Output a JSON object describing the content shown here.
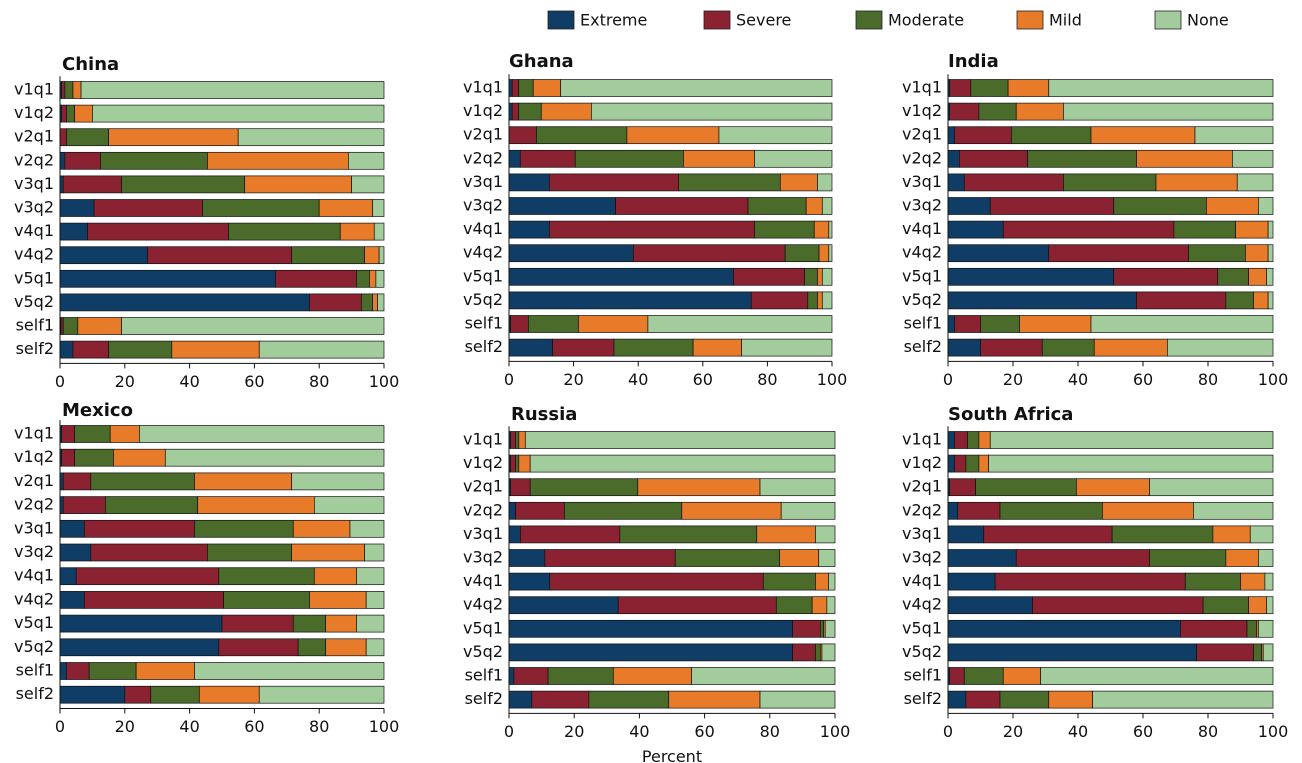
{
  "chart_data": [
    {
      "type": "bar",
      "orientation": "horizontal",
      "stacked": true,
      "title": "China",
      "categories": [
        "v1q1",
        "v1q2",
        "v2q1",
        "v2q2",
        "v3q1",
        "v3q2",
        "v4q1",
        "v4q2",
        "v5q1",
        "v5q2",
        "self1",
        "self2"
      ],
      "series": [
        {
          "name": "Extreme",
          "color": "#0f3d66",
          "values": [
            0.5,
            0.5,
            0,
            1.5,
            1,
            10.5,
            8.5,
            27,
            66.5,
            77,
            0.3,
            4
          ]
        },
        {
          "name": "Severe",
          "color": "#8b2232",
          "values": [
            1,
            1.5,
            2,
            11,
            18,
            33.5,
            43.5,
            44.5,
            25,
            16,
            0.7,
            11
          ]
        },
        {
          "name": "Moderate",
          "color": "#4a6b2a",
          "values": [
            2.5,
            2.5,
            13,
            33,
            38,
            36,
            34.5,
            22.5,
            4,
            3.5,
            4.5,
            19.5
          ]
        },
        {
          "name": "Mild",
          "color": "#e87b2a",
          "values": [
            2.5,
            5.5,
            40,
            43.5,
            33,
            16.5,
            10.5,
            4.5,
            2,
            1.5,
            13.5,
            27
          ]
        },
        {
          "name": "None",
          "color": "#a3cc9d",
          "values": [
            93.5,
            90,
            45,
            11,
            10,
            3.5,
            3,
            1.5,
            2.5,
            2,
            81,
            38.5
          ]
        }
      ],
      "xlim": [
        0,
        100
      ],
      "xticks": [
        0,
        20,
        40,
        60,
        80,
        100
      ]
    },
    {
      "type": "bar",
      "orientation": "horizontal",
      "stacked": true,
      "title": "Ghana",
      "categories": [
        "v1q1",
        "v1q2",
        "v2q1",
        "v2q2",
        "v3q1",
        "v3q2",
        "v4q1",
        "v4q2",
        "v5q1",
        "v5q2",
        "self1",
        "self2"
      ],
      "series": [
        {
          "name": "Extreme",
          "color": "#0f3d66",
          "values": [
            1,
            1,
            0,
            3.5,
            12.5,
            33,
            12.5,
            38.5,
            69.5,
            75,
            0.5,
            13.5
          ]
        },
        {
          "name": "Severe",
          "color": "#8b2232",
          "values": [
            2,
            2,
            8.5,
            17,
            40,
            41,
            63.5,
            47,
            22,
            17.5,
            5.5,
            19
          ]
        },
        {
          "name": "Moderate",
          "color": "#4a6b2a",
          "values": [
            4.5,
            7,
            28,
            33.5,
            31.5,
            18,
            18.5,
            10.5,
            4,
            3,
            15.5,
            24.5
          ]
        },
        {
          "name": "Mild",
          "color": "#e87b2a",
          "values": [
            8.5,
            15.5,
            28.5,
            22,
            11.5,
            5,
            4.5,
            3,
            1.5,
            1.5,
            21.5,
            15
          ]
        },
        {
          "name": "None",
          "color": "#a3cc9d",
          "values": [
            84,
            74.5,
            35,
            24,
            4.5,
            3,
            1,
            1,
            3,
            3,
            57,
            28
          ]
        }
      ],
      "xlim": [
        0,
        100
      ],
      "xticks": [
        0,
        20,
        40,
        60,
        80,
        100
      ]
    },
    {
      "type": "bar",
      "orientation": "horizontal",
      "stacked": true,
      "title": "India",
      "categories": [
        "v1q1",
        "v1q2",
        "v2q1",
        "v2q2",
        "v3q1",
        "v3q2",
        "v4q1",
        "v4q2",
        "v5q1",
        "v5q2",
        "self1",
        "self2"
      ],
      "series": [
        {
          "name": "Extreme",
          "color": "#0f3d66",
          "values": [
            0.5,
            0.5,
            2,
            3.5,
            5,
            13,
            17,
            31,
            51,
            58,
            2,
            10
          ]
        },
        {
          "name": "Severe",
          "color": "#8b2232",
          "values": [
            6.5,
            9,
            17.5,
            21,
            30.5,
            38,
            52.5,
            43,
            32,
            27.5,
            8,
            19
          ]
        },
        {
          "name": "Moderate",
          "color": "#4a6b2a",
          "values": [
            11.5,
            11.5,
            24.5,
            33.5,
            28.5,
            28.5,
            19,
            17.5,
            9.5,
            8.5,
            12,
            16
          ]
        },
        {
          "name": "Mild",
          "color": "#e87b2a",
          "values": [
            12.5,
            14.5,
            32,
            29.5,
            25,
            16,
            10,
            7,
            5.5,
            4.5,
            22,
            22.5
          ]
        },
        {
          "name": "None",
          "color": "#a3cc9d",
          "values": [
            69,
            64.5,
            24,
            12.5,
            11,
            4.5,
            1.5,
            1.5,
            2,
            1.5,
            56,
            32.5
          ]
        }
      ],
      "xlim": [
        0,
        100
      ],
      "xticks": [
        0,
        20,
        40,
        60,
        80,
        100
      ]
    },
    {
      "type": "bar",
      "orientation": "horizontal",
      "stacked": true,
      "title": "Mexico",
      "categories": [
        "v1q1",
        "v1q2",
        "v2q1",
        "v2q2",
        "v3q1",
        "v3q2",
        "v4q1",
        "v4q2",
        "v5q1",
        "v5q2",
        "self1",
        "self2"
      ],
      "series": [
        {
          "name": "Extreme",
          "color": "#0f3d66",
          "values": [
            0.5,
            0.5,
            1,
            1,
            7.5,
            9.5,
            5,
            7.5,
            50,
            49,
            2,
            20
          ]
        },
        {
          "name": "Severe",
          "color": "#8b2232",
          "values": [
            4,
            4,
            8.5,
            13,
            34,
            36,
            44,
            43,
            22,
            24.5,
            7,
            8
          ]
        },
        {
          "name": "Moderate",
          "color": "#4a6b2a",
          "values": [
            11,
            12,
            32,
            28.5,
            30.5,
            26,
            29.5,
            26.5,
            10,
            8.5,
            14.5,
            15
          ]
        },
        {
          "name": "Mild",
          "color": "#e87b2a",
          "values": [
            9,
            16,
            30,
            36,
            17.5,
            22.5,
            13,
            17.5,
            9.5,
            12.5,
            18,
            18.5
          ]
        },
        {
          "name": "None",
          "color": "#a3cc9d",
          "values": [
            75.5,
            67.5,
            28.5,
            21.5,
            10.5,
            6,
            8.5,
            5.5,
            8.5,
            5.5,
            58.5,
            38.5
          ]
        }
      ],
      "xlim": [
        0,
        100
      ],
      "xticks": [
        0,
        20,
        40,
        60,
        80,
        100
      ]
    },
    {
      "type": "bar",
      "orientation": "horizontal",
      "stacked": true,
      "title": "Russia",
      "xlabel": "Percent",
      "categories": [
        "v1q1",
        "v1q2",
        "v2q1",
        "v2q2",
        "v3q1",
        "v3q2",
        "v4q1",
        "v4q2",
        "v5q1",
        "v5q2",
        "self1",
        "self2"
      ],
      "series": [
        {
          "name": "Extreme",
          "color": "#0f3d66",
          "values": [
            0.5,
            0.5,
            0.5,
            2,
            3.5,
            11,
            12.5,
            33.5,
            87,
            87,
            1.5,
            7
          ]
        },
        {
          "name": "Severe",
          "color": "#8b2232",
          "values": [
            1.5,
            1.5,
            6,
            15,
            30.5,
            40,
            65.5,
            48.5,
            8.5,
            7,
            10.5,
            17.5
          ]
        },
        {
          "name": "Moderate",
          "color": "#4a6b2a",
          "values": [
            1,
            1,
            33,
            36,
            42,
            32,
            16,
            11,
            1,
            1.5,
            20,
            24.5
          ]
        },
        {
          "name": "Mild",
          "color": "#e87b2a",
          "values": [
            2,
            3.5,
            37.5,
            30.5,
            18,
            12,
            4,
            4.5,
            0.5,
            0.5,
            24,
            28
          ]
        },
        {
          "name": "None",
          "color": "#a3cc9d",
          "values": [
            95,
            93.5,
            23,
            16.5,
            6,
            5,
            2,
            2.5,
            3,
            4,
            44,
            23
          ]
        }
      ],
      "xlim": [
        0,
        100
      ],
      "xticks": [
        0,
        20,
        40,
        60,
        80,
        100
      ]
    },
    {
      "type": "bar",
      "orientation": "horizontal",
      "stacked": true,
      "title": "South Africa",
      "categories": [
        "v1q1",
        "v1q2",
        "v2q1",
        "v2q2",
        "v3q1",
        "v3q2",
        "v4q1",
        "v4q2",
        "v5q1",
        "v5q2",
        "self1",
        "self2"
      ],
      "series": [
        {
          "name": "Extreme",
          "color": "#0f3d66",
          "values": [
            2,
            2,
            0.5,
            3,
            11,
            21,
            14.5,
            26,
            71.5,
            76.5,
            0.5,
            5.5
          ]
        },
        {
          "name": "Severe",
          "color": "#8b2232",
          "values": [
            4,
            3.5,
            8,
            13,
            39.5,
            41,
            58.5,
            52.5,
            20.5,
            17.5,
            4.5,
            10.5
          ]
        },
        {
          "name": "Moderate",
          "color": "#4a6b2a",
          "values": [
            3.5,
            4,
            31,
            31.5,
            31,
            23.5,
            17,
            14,
            3,
            2.5,
            12,
            15
          ]
        },
        {
          "name": "Mild",
          "color": "#e87b2a",
          "values": [
            3.5,
            3,
            22.5,
            28,
            11.5,
            10,
            7.5,
            5.5,
            0.5,
            0.5,
            11.5,
            13.5
          ]
        },
        {
          "name": "None",
          "color": "#a3cc9d",
          "values": [
            87,
            87.5,
            38,
            24.5,
            7,
            4.5,
            2.5,
            2,
            4.5,
            3,
            71.5,
            55.5
          ]
        }
      ],
      "xlim": [
        0,
        100
      ],
      "xticks": [
        0,
        20,
        40,
        60,
        80,
        100
      ]
    }
  ]
}
